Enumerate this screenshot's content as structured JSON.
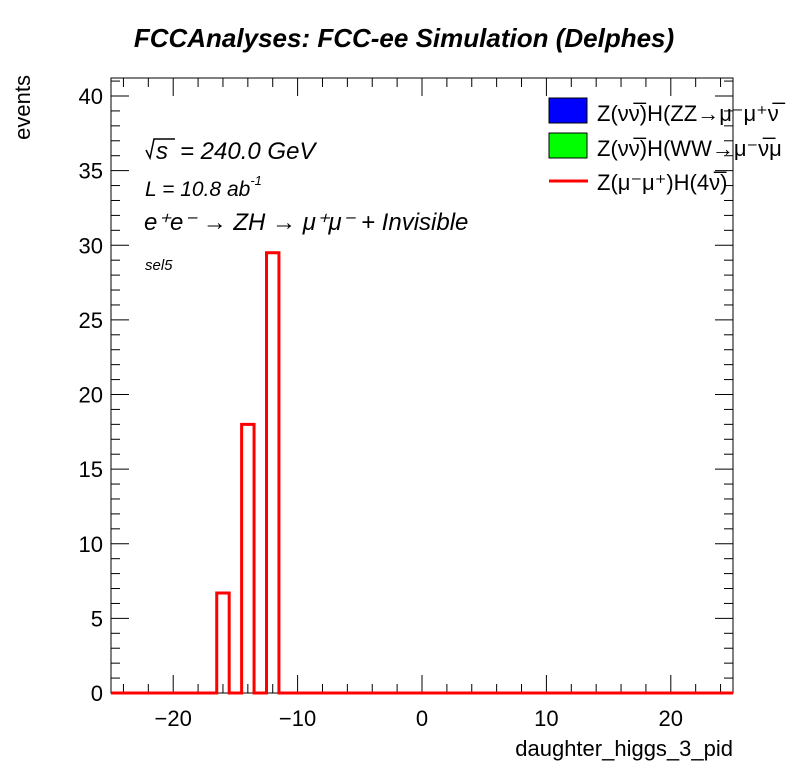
{
  "chart_data": {
    "type": "bar",
    "title": "FCCAnalyses: FCC-ee Simulation (Delphes)",
    "xlabel": "daughter_higgs_3_pid",
    "ylabel": "events",
    "xlim": [
      -25,
      25
    ],
    "ylim": [
      0,
      41
    ],
    "x_ticks": [
      -20,
      -10,
      0,
      10,
      20
    ],
    "x_tick_labels": [
      "−20",
      "−10",
      "0",
      "10",
      "20"
    ],
    "y_ticks": [
      0,
      5,
      10,
      15,
      20,
      25,
      30,
      35,
      40
    ],
    "y_tick_labels": [
      "0",
      "5",
      "10",
      "15",
      "20",
      "25",
      "30",
      "35",
      "40"
    ],
    "bin_width": 1,
    "series": [
      {
        "name": "Z(νν̅)H(ZZ→μ⁻μ⁺νν̅)",
        "style": "filled",
        "color": "#0000ff",
        "bins": []
      },
      {
        "name": "Z(νν̅)H(WW→μ⁻ν̅μ⁺ν)",
        "style": "filled",
        "color": "#00ff00",
        "bins": []
      },
      {
        "name": "Z(μ⁻μ⁺)H(4ν̅)",
        "style": "line",
        "color": "#ff0000",
        "bins": [
          {
            "low": -16.5,
            "high": -15.5,
            "value": 6.7
          },
          {
            "low": -14.5,
            "high": -13.5,
            "value": 18.0
          },
          {
            "low": -12.5,
            "high": -11.5,
            "value": 29.5
          }
        ]
      }
    ],
    "legend": {
      "placement": "top-right",
      "entries": [
        {
          "label_main": "Z(νν̅)H(ZZ",
          "label_tail": "→μ⁻μ⁺ν̅",
          "swatch": "box",
          "color": "#0000ff"
        },
        {
          "label_main": "Z(νν̅)H(WW",
          "label_tail": "→μ⁻ν̅μ",
          "swatch": "box",
          "color": "#00ff00"
        },
        {
          "label_main": "Z(μ⁻μ⁺)H(4ν̅)",
          "label_tail": "",
          "swatch": "line",
          "color": "#ff0000"
        }
      ]
    },
    "annotations": {
      "sqrt_s": "= 240.0 GeV",
      "sqrt_s_symbol": "s",
      "lumi_prefix": "L = 10.8 ab",
      "lumi_exp": "-1",
      "process": "e⁺e⁻ → ZH → μ⁺μ⁻ + Invisible",
      "selection": "sel5"
    },
    "grid": false
  }
}
